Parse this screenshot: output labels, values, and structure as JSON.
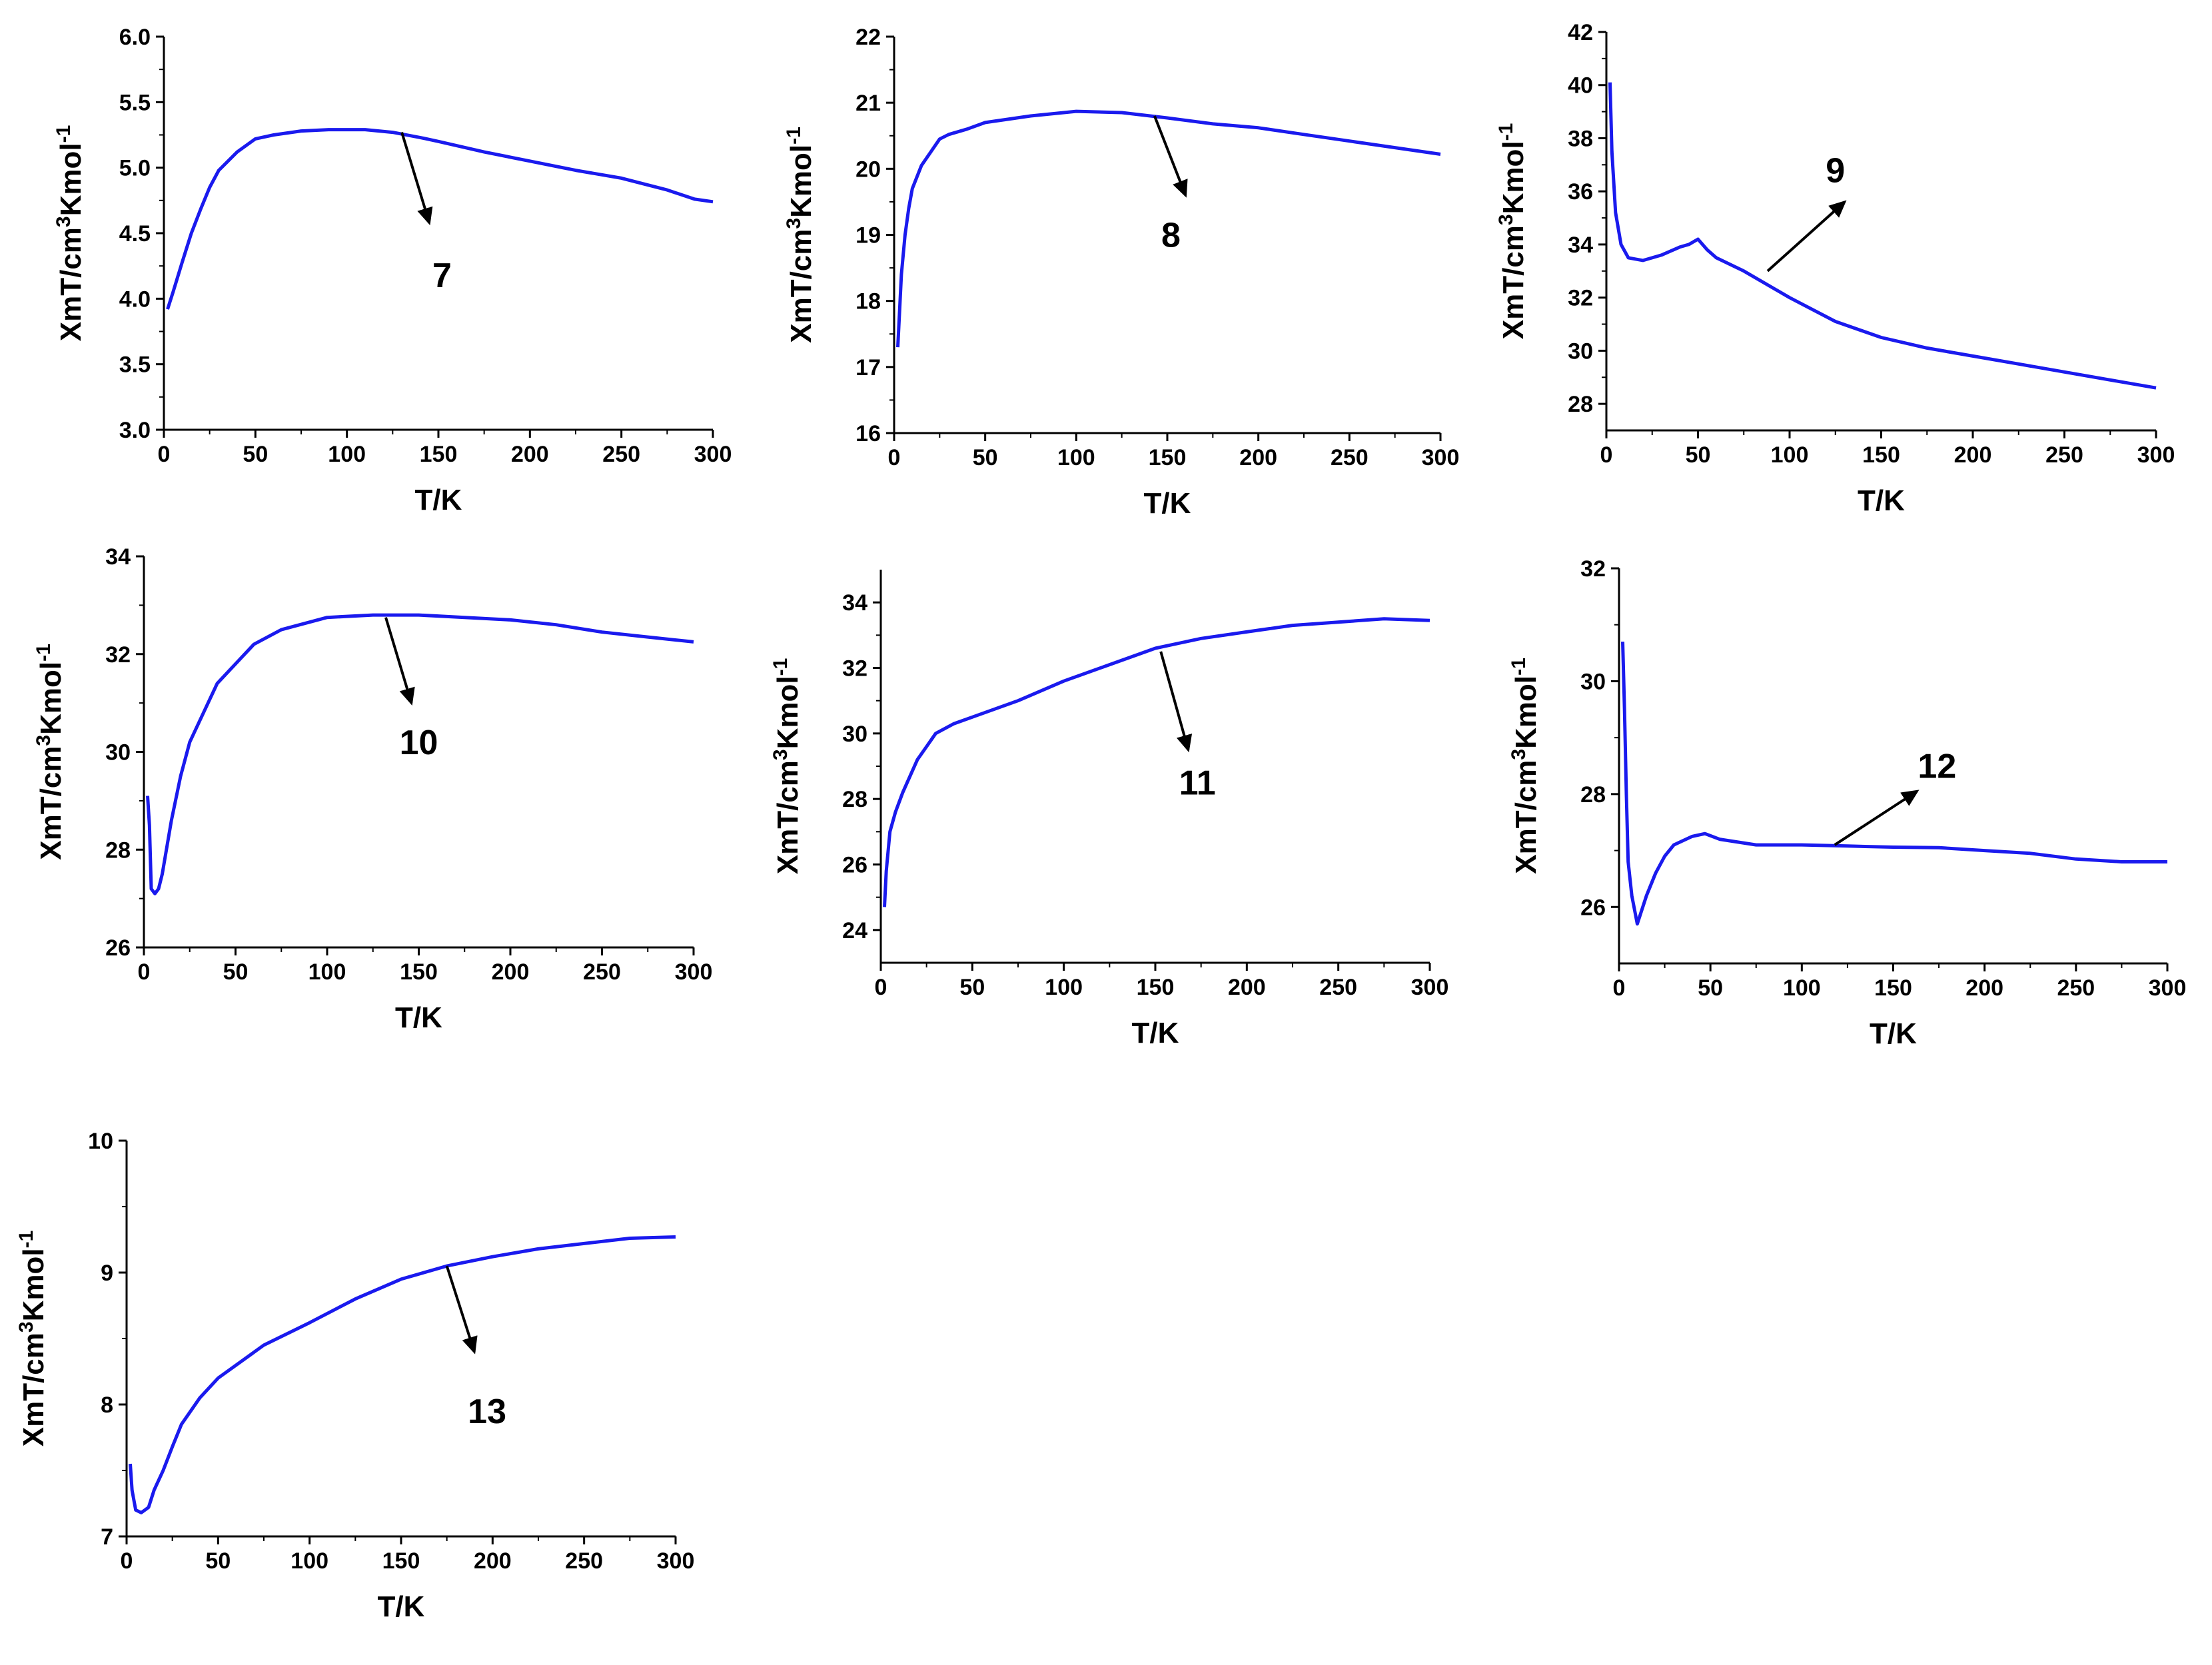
{
  "figure": {
    "description_axis_units": "temperature (K) vs chi_m*T (cm3 K mol-1)"
  },
  "colors": {
    "curve": "#1a1aee",
    "axes": "#000000",
    "arrow": "#000000"
  },
  "chart_data": [
    {
      "type": "line",
      "label": "7",
      "xlabel": "T/K",
      "ylabel_main": "XmT/cm",
      "ylabel_sup1": "3",
      "ylabel_mid": "Kmol",
      "ylabel_sup2": "-1",
      "xlim": [
        0,
        300
      ],
      "ylim": [
        3.0,
        6.0
      ],
      "x_ticks": [
        0,
        50,
        100,
        150,
        200,
        250,
        300
      ],
      "x_tick_labels": [
        "0",
        "50",
        "100",
        "150",
        "200",
        "250",
        "300"
      ],
      "y_ticks": [
        3.0,
        3.5,
        4.0,
        4.5,
        5.0,
        5.5,
        6.0
      ],
      "y_tick_labels": [
        "3.0",
        "3.5",
        "4.0",
        "4.5",
        "5.0",
        "5.5",
        "6.0"
      ],
      "x": [
        2,
        5,
        10,
        15,
        20,
        25,
        30,
        40,
        50,
        60,
        75,
        90,
        100,
        110,
        125,
        140,
        150,
        175,
        200,
        225,
        250,
        275,
        290,
        300
      ],
      "y": [
        3.92,
        4.05,
        4.28,
        4.5,
        4.68,
        4.85,
        4.98,
        5.12,
        5.22,
        5.25,
        5.28,
        5.29,
        5.29,
        5.29,
        5.27,
        5.23,
        5.2,
        5.12,
        5.05,
        4.98,
        4.92,
        4.83,
        4.76,
        4.74
      ],
      "annotation": {
        "text": "7",
        "arrow_from": [
          130,
          5.27
        ],
        "arrow_to": [
          145,
          4.58
        ],
        "text_at": [
          152,
          4.18
        ]
      }
    },
    {
      "type": "line",
      "label": "8",
      "xlabel": "T/K",
      "ylabel_main": "XmT/cm",
      "ylabel_sup1": "3",
      "ylabel_mid": "Kmol",
      "ylabel_sup2": "-1",
      "xlim": [
        0,
        300
      ],
      "ylim": [
        16,
        22
      ],
      "x_ticks": [
        0,
        50,
        100,
        150,
        200,
        250,
        300
      ],
      "x_tick_labels": [
        "0",
        "50",
        "100",
        "150",
        "200",
        "250",
        "300"
      ],
      "y_ticks": [
        16,
        17,
        18,
        19,
        20,
        21,
        22
      ],
      "y_tick_labels": [
        "16",
        "17",
        "18",
        "19",
        "20",
        "21",
        "22"
      ],
      "x": [
        2,
        4,
        6,
        8,
        10,
        15,
        20,
        25,
        30,
        40,
        50,
        75,
        100,
        125,
        150,
        175,
        200,
        225,
        250,
        275,
        300
      ],
      "y": [
        17.3,
        18.4,
        19.0,
        19.4,
        19.7,
        20.05,
        20.25,
        20.45,
        20.52,
        20.6,
        20.7,
        20.8,
        20.87,
        20.85,
        20.77,
        20.68,
        20.62,
        20.52,
        20.42,
        20.32,
        20.22
      ],
      "annotation": {
        "text": "8",
        "arrow_from": [
          143,
          20.8
        ],
        "arrow_to": [
          160,
          19.6
        ],
        "text_at": [
          152,
          19.0
        ]
      }
    },
    {
      "type": "line",
      "label": "9",
      "xlabel": "T/K",
      "ylabel_main": "XmT/cm",
      "ylabel_sup1": "3",
      "ylabel_mid": "Kmol",
      "ylabel_sup2": "-1",
      "xlim": [
        0,
        300
      ],
      "ylim": [
        27,
        42
      ],
      "x_ticks": [
        0,
        50,
        100,
        150,
        200,
        250,
        300
      ],
      "x_tick_labels": [
        "0",
        "50",
        "100",
        "150",
        "200",
        "250",
        "300"
      ],
      "y_ticks": [
        28,
        30,
        32,
        34,
        36,
        38,
        40,
        42
      ],
      "y_tick_labels": [
        "28",
        "30",
        "32",
        "34",
        "36",
        "38",
        "40",
        "42"
      ],
      "x": [
        2,
        3,
        5,
        8,
        12,
        20,
        30,
        40,
        45,
        50,
        55,
        60,
        75,
        100,
        125,
        150,
        175,
        200,
        225,
        250,
        275,
        300
      ],
      "y": [
        40.1,
        37.5,
        35.2,
        34.0,
        33.5,
        33.4,
        33.6,
        33.9,
        34.0,
        34.2,
        33.8,
        33.5,
        33.0,
        32.0,
        31.1,
        30.5,
        30.1,
        29.8,
        29.5,
        29.2,
        28.9,
        28.6
      ],
      "annotation": {
        "text": "9",
        "arrow_from": [
          88,
          33.0
        ],
        "arrow_to": [
          130,
          35.6
        ],
        "text_at": [
          125,
          36.8
        ]
      }
    },
    {
      "type": "line",
      "label": "10",
      "xlabel": "T/K",
      "ylabel_main": "XmT/cm",
      "ylabel_sup1": "3",
      "ylabel_mid": "Kmol",
      "ylabel_sup2": "-1",
      "xlim": [
        0,
        300
      ],
      "ylim": [
        26,
        34
      ],
      "x_ticks": [
        0,
        50,
        100,
        150,
        200,
        250,
        300
      ],
      "x_tick_labels": [
        "0",
        "50",
        "100",
        "150",
        "200",
        "250",
        "300"
      ],
      "y_ticks": [
        26,
        28,
        30,
        32,
        34
      ],
      "y_tick_labels": [
        "26",
        "28",
        "30",
        "32",
        "34"
      ],
      "x": [
        2,
        3,
        4,
        6,
        8,
        10,
        15,
        20,
        25,
        30,
        40,
        50,
        60,
        75,
        100,
        125,
        150,
        175,
        200,
        225,
        250,
        275,
        300
      ],
      "y": [
        29.1,
        28.5,
        27.2,
        27.1,
        27.2,
        27.5,
        28.6,
        29.5,
        30.2,
        30.6,
        31.4,
        31.8,
        32.2,
        32.5,
        32.75,
        32.8,
        32.8,
        32.75,
        32.7,
        32.6,
        32.45,
        32.35,
        32.25
      ],
      "annotation": {
        "text": "10",
        "arrow_from": [
          132,
          32.75
        ],
        "arrow_to": [
          146,
          31.0
        ],
        "text_at": [
          150,
          30.2
        ]
      }
    },
    {
      "type": "line",
      "label": "11",
      "xlabel": "T/K",
      "ylabel_main": "XmT/cm",
      "ylabel_sup1": "3",
      "ylabel_mid": "Kmol",
      "ylabel_sup2": "-1",
      "xlim": [
        0,
        300
      ],
      "ylim": [
        23,
        35
      ],
      "x_ticks": [
        0,
        50,
        100,
        150,
        200,
        250,
        300
      ],
      "x_tick_labels": [
        "0",
        "50",
        "100",
        "150",
        "200",
        "250",
        "300"
      ],
      "y_ticks": [
        24,
        26,
        28,
        30,
        32,
        34
      ],
      "y_tick_labels": [
        "24",
        "26",
        "28",
        "30",
        "32",
        "34"
      ],
      "x": [
        2,
        3,
        5,
        8,
        12,
        16,
        20,
        25,
        30,
        40,
        50,
        75,
        100,
        125,
        150,
        175,
        200,
        225,
        250,
        275,
        300
      ],
      "y": [
        24.7,
        25.8,
        27.0,
        27.6,
        28.2,
        28.7,
        29.2,
        29.6,
        30.0,
        30.3,
        30.5,
        31.0,
        31.6,
        32.1,
        32.6,
        32.9,
        33.1,
        33.3,
        33.4,
        33.5,
        33.45
      ],
      "annotation": {
        "text": "11",
        "arrow_from": [
          153,
          32.5
        ],
        "arrow_to": [
          168,
          29.5
        ],
        "text_at": [
          173,
          28.5
        ]
      }
    },
    {
      "type": "line",
      "label": "12",
      "xlabel": "T/K",
      "ylabel_main": "XmT/cm",
      "ylabel_sup1": "3",
      "ylabel_mid": "Kmol",
      "ylabel_sup2": "-1",
      "xlim": [
        0,
        300
      ],
      "ylim": [
        25,
        32
      ],
      "x_ticks": [
        0,
        50,
        100,
        150,
        200,
        250,
        300
      ],
      "x_tick_labels": [
        "0",
        "50",
        "100",
        "150",
        "200",
        "250",
        "300"
      ],
      "y_ticks": [
        26,
        28,
        30,
        32
      ],
      "y_tick_labels": [
        "26",
        "28",
        "30",
        "32"
      ],
      "x": [
        2,
        3,
        4,
        5,
        7,
        10,
        15,
        20,
        25,
        30,
        40,
        47,
        55,
        65,
        75,
        100,
        125,
        150,
        175,
        200,
        225,
        250,
        275,
        300
      ],
      "y": [
        30.7,
        29.5,
        28.0,
        26.8,
        26.2,
        25.7,
        26.2,
        26.6,
        26.9,
        27.1,
        27.25,
        27.3,
        27.2,
        27.15,
        27.1,
        27.1,
        27.08,
        27.06,
        27.05,
        27.0,
        26.95,
        26.85,
        26.8,
        26.8
      ],
      "annotation": {
        "text": "12",
        "arrow_from": [
          118,
          27.1
        ],
        "arrow_to": [
          163,
          28.05
        ],
        "text_at": [
          174,
          28.5
        ]
      }
    },
    {
      "type": "line",
      "label": "13",
      "xlabel": "T/K",
      "ylabel_main": "XmT/cm",
      "ylabel_sup1": "3",
      "ylabel_mid": "Kmol",
      "ylabel_sup2": "-1",
      "xlim": [
        0,
        300
      ],
      "ylim": [
        7,
        10
      ],
      "x_ticks": [
        0,
        50,
        100,
        150,
        200,
        250,
        300
      ],
      "x_tick_labels": [
        "0",
        "50",
        "100",
        "150",
        "200",
        "250",
        "300"
      ],
      "y_ticks": [
        7,
        8,
        9,
        10
      ],
      "y_tick_labels": [
        "7",
        "8",
        "9",
        "10"
      ],
      "x": [
        2,
        3,
        5,
        8,
        12,
        15,
        20,
        25,
        30,
        40,
        50,
        75,
        100,
        125,
        150,
        175,
        200,
        225,
        250,
        275,
        300
      ],
      "y": [
        7.55,
        7.35,
        7.2,
        7.18,
        7.22,
        7.35,
        7.5,
        7.68,
        7.85,
        8.05,
        8.2,
        8.45,
        8.62,
        8.8,
        8.95,
        9.05,
        9.12,
        9.18,
        9.22,
        9.26,
        9.27
      ],
      "annotation": {
        "text": "13",
        "arrow_from": [
          175,
          9.05
        ],
        "arrow_to": [
          190,
          8.4
        ],
        "text_at": [
          197,
          7.95
        ]
      }
    }
  ]
}
